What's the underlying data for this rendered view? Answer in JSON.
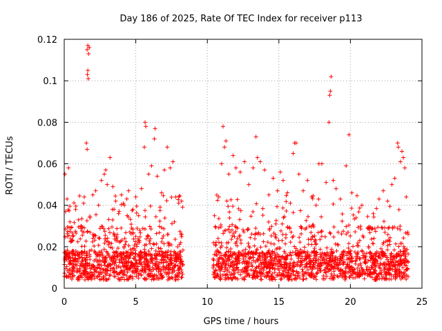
{
  "chart_data": {
    "type": "scatter",
    "title": "Day 186 of 2025, Rate Of TEC Index for receiver p113",
    "xlabel": "GPS time / hours",
    "ylabel": "ROTI / TECUs",
    "xlim": [
      0,
      25
    ],
    "ylim": [
      0,
      0.12
    ],
    "xticks": [
      0,
      5,
      10,
      15,
      20,
      25
    ],
    "xtick_labels": [
      "0",
      "5",
      "10",
      "15",
      "20",
      "25"
    ],
    "yticks": [
      0,
      0.02,
      0.04,
      0.06,
      0.08,
      0.1,
      0.12
    ],
    "ytick_labels": [
      "0",
      "0.02",
      "0.04",
      "0.06",
      "0.08",
      "0.1",
      "0.12"
    ],
    "grid": true,
    "marker": "plus",
    "color": "#ff0000",
    "data_gaps_hours": [
      [
        8.3,
        10.4
      ]
    ],
    "series": [
      {
        "points": [
          [
            0.05,
            0.055
          ],
          [
            0.1,
            0.037
          ],
          [
            0.2,
            0.043
          ],
          [
            0.3,
            0.058
          ],
          [
            0.4,
            0.032
          ],
          [
            0.6,
            0.025
          ],
          [
            0.8,
            0.038
          ],
          [
            1.0,
            0.033
          ],
          [
            1.2,
            0.03
          ],
          [
            1.4,
            0.044
          ],
          [
            1.55,
            0.07
          ],
          [
            1.6,
            0.067
          ],
          [
            1.62,
            0.103
          ],
          [
            1.65,
            0.105
          ],
          [
            1.68,
            0.101
          ],
          [
            1.6,
            0.115
          ],
          [
            1.65,
            0.117
          ],
          [
            1.7,
            0.113
          ],
          [
            1.75,
            0.116
          ],
          [
            1.8,
            0.034
          ],
          [
            2.0,
            0.045
          ],
          [
            2.2,
            0.047
          ],
          [
            2.4,
            0.04
          ],
          [
            2.6,
            0.052
          ],
          [
            2.8,
            0.055
          ],
          [
            2.9,
            0.057
          ],
          [
            3.0,
            0.05
          ],
          [
            3.2,
            0.063
          ],
          [
            3.4,
            0.049
          ],
          [
            3.6,
            0.042
          ],
          [
            3.8,
            0.036
          ],
          [
            4.0,
            0.045
          ],
          [
            4.2,
            0.04
          ],
          [
            4.5,
            0.047
          ],
          [
            4.8,
            0.038
          ],
          [
            5.0,
            0.044
          ],
          [
            5.2,
            0.035
          ],
          [
            5.4,
            0.048
          ],
          [
            5.6,
            0.068
          ],
          [
            5.65,
            0.08
          ],
          [
            5.7,
            0.078
          ],
          [
            5.9,
            0.055
          ],
          [
            6.1,
            0.059
          ],
          [
            6.3,
            0.072
          ],
          [
            6.35,
            0.077
          ],
          [
            6.5,
            0.054
          ],
          [
            6.8,
            0.046
          ],
          [
            7.0,
            0.057
          ],
          [
            7.2,
            0.068
          ],
          [
            7.4,
            0.058
          ],
          [
            7.6,
            0.061
          ],
          [
            7.8,
            0.044
          ],
          [
            8.0,
            0.041
          ],
          [
            8.2,
            0.042
          ],
          [
            10.5,
            0.035
          ],
          [
            10.8,
            0.044
          ],
          [
            11.0,
            0.06
          ],
          [
            11.1,
            0.078
          ],
          [
            11.2,
            0.068
          ],
          [
            11.3,
            0.071
          ],
          [
            11.5,
            0.055
          ],
          [
            11.8,
            0.064
          ],
          [
            12.0,
            0.058
          ],
          [
            12.3,
            0.056
          ],
          [
            12.6,
            0.061
          ],
          [
            12.9,
            0.05
          ],
          [
            13.2,
            0.058
          ],
          [
            13.4,
            0.073
          ],
          [
            13.5,
            0.063
          ],
          [
            13.7,
            0.061
          ],
          [
            14.0,
            0.057
          ],
          [
            14.3,
            0.045
          ],
          [
            14.6,
            0.053
          ],
          [
            14.9,
            0.047
          ],
          [
            15.1,
            0.056
          ],
          [
            15.3,
            0.052
          ],
          [
            15.6,
            0.046
          ],
          [
            15.8,
            0.041
          ],
          [
            16.0,
            0.065
          ],
          [
            16.1,
            0.07
          ],
          [
            16.2,
            0.07
          ],
          [
            16.4,
            0.055
          ],
          [
            16.7,
            0.047
          ],
          [
            17.0,
            0.052
          ],
          [
            17.3,
            0.044
          ],
          [
            17.6,
            0.04
          ],
          [
            17.8,
            0.06
          ],
          [
            18.0,
            0.06
          ],
          [
            18.3,
            0.051
          ],
          [
            18.5,
            0.08
          ],
          [
            18.55,
            0.093
          ],
          [
            18.6,
            0.095
          ],
          [
            18.65,
            0.102
          ],
          [
            18.8,
            0.052
          ],
          [
            19.0,
            0.048
          ],
          [
            19.3,
            0.043
          ],
          [
            19.7,
            0.059
          ],
          [
            19.9,
            0.074
          ],
          [
            20.1,
            0.046
          ],
          [
            20.4,
            0.034
          ],
          [
            20.8,
            0.04
          ],
          [
            21.2,
            0.029
          ],
          [
            21.6,
            0.036
          ],
          [
            22.0,
            0.043
          ],
          [
            22.3,
            0.047
          ],
          [
            22.6,
            0.042
          ],
          [
            22.9,
            0.05
          ],
          [
            23.1,
            0.053
          ],
          [
            23.3,
            0.07
          ],
          [
            23.35,
            0.068
          ],
          [
            23.5,
            0.061
          ],
          [
            23.6,
            0.066
          ],
          [
            23.7,
            0.063
          ],
          [
            23.8,
            0.058
          ],
          [
            23.9,
            0.044
          ],
          [
            24.0,
            0.027
          ]
        ]
      }
    ]
  }
}
